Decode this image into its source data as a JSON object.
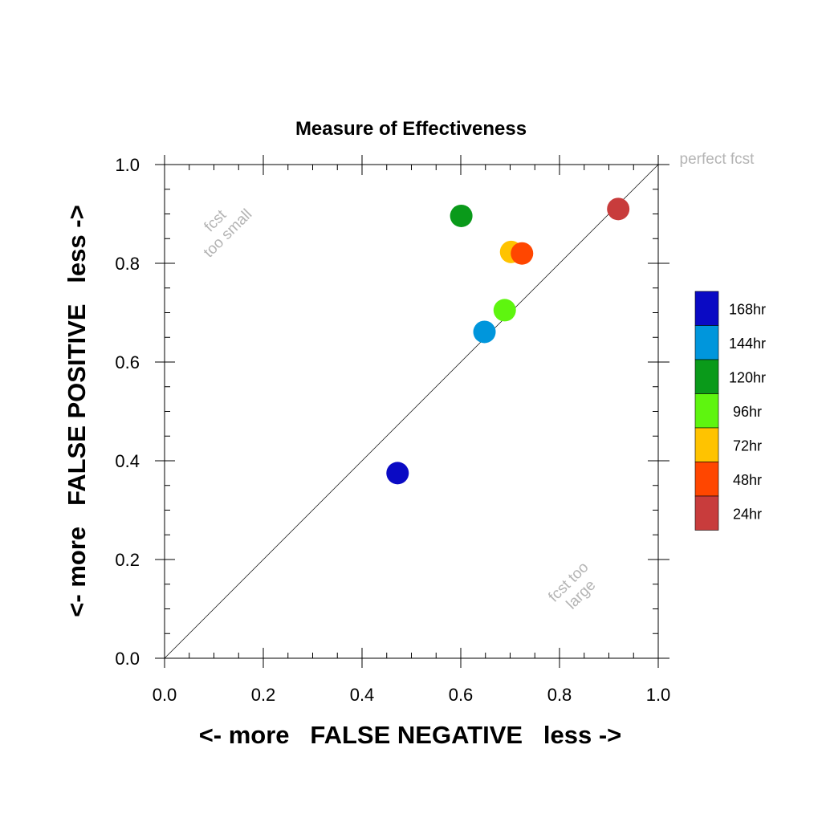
{
  "chart_data": {
    "type": "scatter",
    "title": "Measure of Effectiveness",
    "xlabel": "<- more   FALSE NEGATIVE   less ->",
    "ylabel": "<- more   FALSE POSITIVE   less ->",
    "xlim": [
      0.0,
      1.0
    ],
    "ylim": [
      0.0,
      1.0
    ],
    "x_ticks": [
      "0.0",
      "0.2",
      "0.4",
      "0.6",
      "0.8",
      "1.0"
    ],
    "y_ticks": [
      "0.0",
      "0.2",
      "0.4",
      "0.6",
      "0.8",
      "1.0"
    ],
    "grid": false,
    "diagonal_line": true,
    "annotations": {
      "perfect": "perfect fcst",
      "small_line1": "fcst",
      "small_line2": "too small",
      "large_line1": "fcst too",
      "large_line2": "large"
    },
    "legend_position": "right",
    "series": [
      {
        "name": "168hr",
        "color": "#0a0ac4",
        "x": 0.472,
        "y": 0.375
      },
      {
        "name": "144hr",
        "color": "#0096dc",
        "x": 0.648,
        "y": 0.661
      },
      {
        "name": "120hr",
        "color": "#0a9a1a",
        "x": 0.601,
        "y": 0.896
      },
      {
        "name": "96hr",
        "color": "#5ef50f",
        "x": 0.689,
        "y": 0.705
      },
      {
        "name": "72hr",
        "color": "#ffc300",
        "x": 0.702,
        "y": 0.823
      },
      {
        "name": "48hr",
        "color": "#ff4600",
        "x": 0.724,
        "y": 0.82
      },
      {
        "name": "24hr",
        "color": "#c83c3c",
        "x": 0.919,
        "y": 0.91
      }
    ]
  }
}
